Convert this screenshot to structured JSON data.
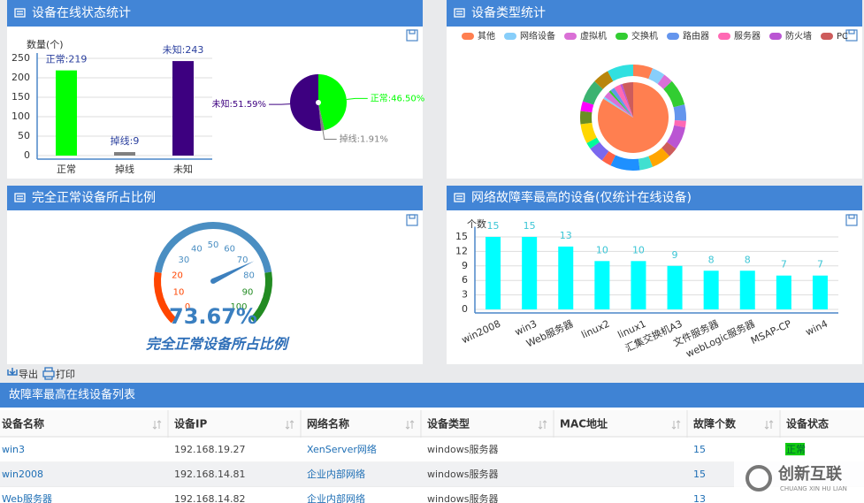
{
  "chart_data": [
    {
      "type": "bar",
      "title": "设备在线状态统计",
      "y_axis_label": "数量(个)",
      "categories": [
        "正常",
        "掉线",
        "未知"
      ],
      "values": [
        219,
        9,
        243
      ],
      "value_labels": [
        "正常:219",
        "掉线:9",
        "未知:243"
      ],
      "colors": [
        "#00ff00",
        "#808080",
        "#3d0080"
      ],
      "ylim": [
        0,
        250
      ],
      "yticks": [
        0,
        50,
        100,
        150,
        200,
        250
      ],
      "grid": true
    },
    {
      "type": "pie",
      "categories": [
        "正常",
        "掉线",
        "未知"
      ],
      "values": [
        46.5,
        1.91,
        51.59
      ],
      "value_labels": [
        "正常:46.50%",
        "掉线:1.91%",
        "未知:51.59%"
      ],
      "colors": [
        "#00ff00",
        "#808080",
        "#3d0080"
      ]
    },
    {
      "type": "donut",
      "title": "设备类型统计",
      "categories": [
        "其他",
        "网络设备",
        "虚拟机",
        "交换机",
        "路由器",
        "服务器",
        "防火墙",
        "PC"
      ],
      "values": [
        84,
        1,
        3,
        1,
        2,
        3,
        1,
        5
      ],
      "colors": [
        "#ff7f50",
        "#87cefa",
        "#da70d6",
        "#32cd32",
        "#6495ed",
        "#ff69b4",
        "#ba55d3",
        "#cd5c5c"
      ],
      "outer_values": [
        6,
        4,
        3,
        8,
        5,
        2,
        7,
        3,
        6,
        4,
        9,
        3,
        5,
        2,
        6,
        4,
        3,
        7,
        5,
        8
      ],
      "outer_colors": [
        "#ff7f50",
        "#87cefa",
        "#da70d6",
        "#32cd32",
        "#6495ed",
        "#ff69b4",
        "#ba55d3",
        "#cd5c5c",
        "#ffa500",
        "#40e0d0",
        "#1e90ff",
        "#ff6347",
        "#7b68ee",
        "#00fa9a",
        "#ffd700",
        "#6b8e23",
        "#ff00ff",
        "#3cb371",
        "#b8860b",
        "#30e0e0"
      ]
    },
    {
      "type": "gauge",
      "title": "完全正常设备所占比例",
      "value": 73.67,
      "value_label": "73.67%",
      "caption": "完全正常设备所占比例",
      "ylim": [
        0,
        100
      ],
      "yticks": [
        0,
        10,
        20,
        30,
        40,
        50,
        60,
        70,
        80,
        90,
        100
      ],
      "bands": [
        {
          "to": 20,
          "color": "#ff4500"
        },
        {
          "to": 80,
          "color": "#4a8ec2"
        },
        {
          "to": 100,
          "color": "#228b22"
        }
      ]
    },
    {
      "type": "bar",
      "title": "网络故障率最高的设备(仅统计在线设备)",
      "y_axis_label": "个数",
      "categories": [
        "win2008",
        "win3",
        "Web服务器",
        "linux2",
        "linux1",
        "汇集交换机A3",
        "文件服务器",
        "webLogic服务器",
        "MSAP-CP",
        "win4"
      ],
      "values": [
        15,
        15,
        13,
        10,
        10,
        9,
        8,
        8,
        7,
        7
      ],
      "color": "#00ffff",
      "ylim": [
        0,
        16
      ],
      "yticks": [
        0,
        3,
        6,
        9,
        12,
        15
      ],
      "grid": true
    }
  ],
  "toolbar": {
    "export": "导出",
    "print": "打印"
  },
  "table": {
    "title": "故障率最高在线设备列表",
    "columns": [
      "设备名称",
      "设备IP",
      "网络名称",
      "设备类型",
      "MAC地址",
      "故障个数",
      "设备状态"
    ],
    "rows": [
      [
        "win3",
        "192.168.19.27",
        "XenServer网络",
        "windows服务器",
        null,
        15,
        "正常"
      ],
      [
        "win2008",
        "192.168.14.81",
        "企业内部网络",
        "windows服务器",
        null,
        15,
        null
      ],
      [
        "Web服务器",
        "192.168.14.82",
        "企业内部网络",
        "windows服务器",
        null,
        13,
        null
      ]
    ]
  },
  "watermark": {
    "name": "创新互联",
    "pinyin": "CHUANG XIN HU LIAN"
  }
}
